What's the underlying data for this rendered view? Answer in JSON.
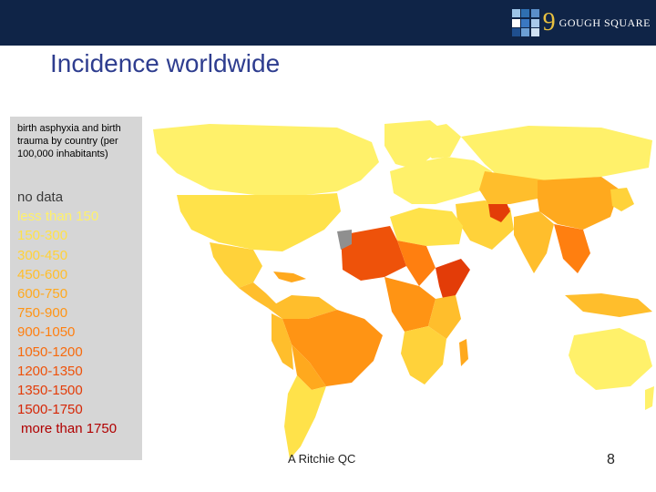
{
  "header": {
    "logo": {
      "number": "9",
      "text": "GOUGH SQUARE",
      "mark_colors": [
        "#9cc3e6",
        "#2f6fb1",
        "#5b8ec9",
        "#ffffff",
        "#3a78c2",
        "#a9c9ea",
        "#1f4f8f",
        "#6c9fd4",
        "#cfe1f3"
      ]
    }
  },
  "slide": {
    "title": "Incidence worldwide"
  },
  "legend": {
    "caption": "birth asphyxia and birth trauma by country (per 100,000 inhabitants)",
    "items": [
      {
        "label": "no data",
        "color": "#3a3a3a"
      },
      {
        "label": "less than 150",
        "color": "#fff16a"
      },
      {
        "label": "150-300",
        "color": "#ffe24a"
      },
      {
        "label": "300-450",
        "color": "#ffd23a"
      },
      {
        "label": "450-600",
        "color": "#ffbe2c"
      },
      {
        "label": "600-750",
        "color": "#ffa91e"
      },
      {
        "label": "750-900",
        "color": "#ff9414"
      },
      {
        "label": "900-1050",
        "color": "#ff7f10"
      },
      {
        "label": "1050-1200",
        "color": "#f76a0c"
      },
      {
        "label": "1200-1350",
        "color": "#ee520a"
      },
      {
        "label": "1350-1500",
        "color": "#e33c08"
      },
      {
        "label": "1500-1750",
        "color": "#d52606"
      },
      {
        "label": "more than 1750",
        "color": "#b00000"
      }
    ]
  },
  "footer": {
    "author": "A Ritchie QC",
    "page_number": "8"
  }
}
